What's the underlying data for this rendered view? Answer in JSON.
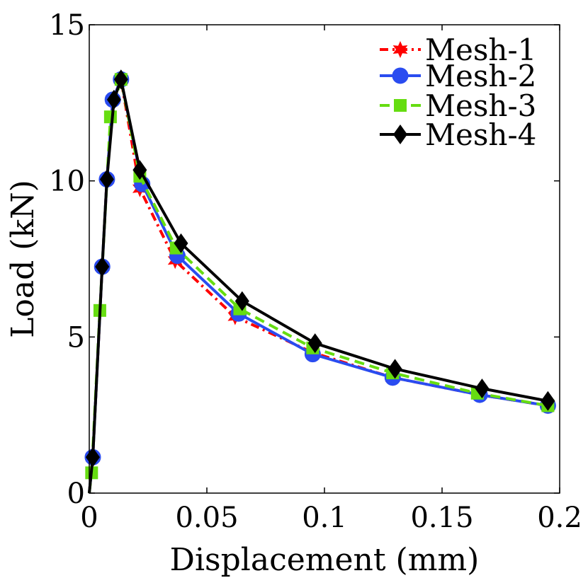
{
  "chart_data": {
    "type": "line",
    "title": "",
    "xlabel": "Displacement (mm)",
    "ylabel": "Load (kN)",
    "xlim": [
      0,
      0.2
    ],
    "ylim": [
      0,
      15
    ],
    "xticks": [
      0,
      0.05,
      0.1,
      0.15,
      0.2
    ],
    "xtick_labels": [
      "0",
      "0.05",
      "0.1",
      "0.15",
      "0.2"
    ],
    "yticks": [
      0,
      5,
      10,
      15
    ],
    "ytick_labels": [
      "0",
      "5",
      "10",
      "15"
    ],
    "grid": false,
    "legend_position": "top-right",
    "series": [
      {
        "name": "Mesh-1",
        "color": "#ff0000",
        "line_style": "dash-dot",
        "marker": "hexagram",
        "x": [
          0,
          0.0015,
          0.0055,
          0.0075,
          0.01,
          0.0135,
          0.0215,
          0.0365,
          0.062,
          0.095,
          0.129,
          0.166,
          0.195
        ],
        "y": [
          0,
          1.15,
          7.25,
          10.05,
          12.6,
          13.25,
          9.75,
          7.45,
          5.65,
          4.5,
          3.7,
          3.15,
          2.8
        ]
      },
      {
        "name": "Mesh-2",
        "color": "#2a4cf0",
        "line_style": "solid",
        "marker": "circle",
        "x": [
          0,
          0.0015,
          0.0055,
          0.0075,
          0.01,
          0.0135,
          0.0225,
          0.0375,
          0.0635,
          0.095,
          0.129,
          0.166,
          0.195
        ],
        "y": [
          0,
          1.15,
          7.25,
          10.05,
          12.6,
          13.25,
          9.9,
          7.6,
          5.75,
          4.45,
          3.7,
          3.15,
          2.8
        ]
      },
      {
        "name": "Mesh-3",
        "color": "#66dd11",
        "line_style": "dashed",
        "marker": "square",
        "x": [
          0,
          0.001,
          0.0045,
          0.009,
          0.0135,
          0.0215,
          0.037,
          0.064,
          0.095,
          0.129,
          0.165,
          0.195
        ],
        "y": [
          0,
          0.65,
          5.85,
          12.05,
          13.25,
          10.15,
          7.85,
          5.9,
          4.65,
          3.85,
          3.2,
          2.8
        ]
      },
      {
        "name": "Mesh-4",
        "color": "#000000",
        "line_style": "solid",
        "marker": "diamond",
        "x": [
          0,
          0.0015,
          0.0055,
          0.0075,
          0.0105,
          0.0135,
          0.0215,
          0.039,
          0.065,
          0.096,
          0.13,
          0.167,
          0.195
        ],
        "y": [
          0,
          1.15,
          7.25,
          10.05,
          12.6,
          13.25,
          10.35,
          8.0,
          6.15,
          4.8,
          3.98,
          3.35,
          2.95
        ]
      }
    ]
  }
}
